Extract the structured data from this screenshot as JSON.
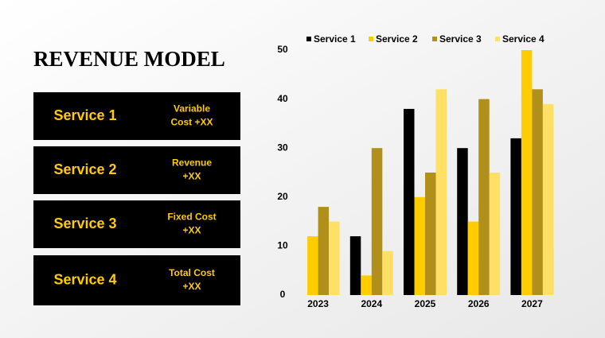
{
  "title": "REVENUE MODEL",
  "cards": [
    {
      "name": "Service 1",
      "detail": [
        "Variable",
        "Cost +XX"
      ]
    },
    {
      "name": "Service 2",
      "detail": [
        "Revenue",
        "+XX"
      ]
    },
    {
      "name": "Service 3",
      "detail": [
        "Fixed Cost",
        "+XX"
      ]
    },
    {
      "name": "Service 4",
      "detail": [
        "Total Cost",
        "+XX"
      ]
    }
  ],
  "chart_data": {
    "type": "bar",
    "categories": [
      "2023",
      "2024",
      "2025",
      "2026",
      "2027"
    ],
    "series": [
      {
        "name": "Service 1",
        "color": "#000000",
        "values": [
          0,
          12,
          38,
          30,
          32
        ]
      },
      {
        "name": "Service 2",
        "color": "#ffcc00",
        "values": [
          12,
          4,
          20,
          15,
          50
        ]
      },
      {
        "name": "Service 3",
        "color": "#b08f1a",
        "values": [
          18,
          30,
          25,
          40,
          42
        ]
      },
      {
        "name": "Service 4",
        "color": "#ffe066",
        "values": [
          15,
          9,
          42,
          25,
          39
        ]
      }
    ],
    "ylim": [
      0,
      50
    ],
    "yticks": [
      0,
      10,
      20,
      30,
      40,
      50
    ],
    "grid": false,
    "legend": "top"
  }
}
